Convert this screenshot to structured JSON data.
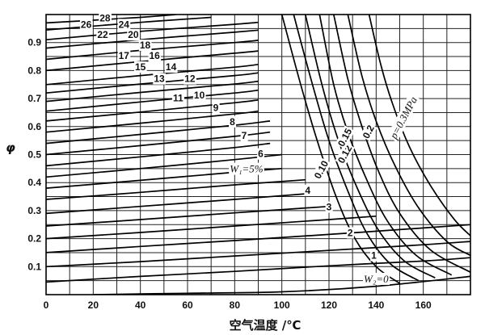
{
  "chart_data": {
    "type": "line",
    "title": "",
    "xlabel": "空气温度 /℃",
    "ylabel": "φ",
    "xlim": [
      0,
      180
    ],
    "ylim": [
      0,
      1.0
    ],
    "x_ticks": [
      0,
      20,
      40,
      60,
      80,
      100,
      120,
      140,
      160
    ],
    "y_ticks": [
      0.1,
      0.2,
      0.3,
      0.4,
      0.5,
      0.6,
      0.7,
      0.8,
      0.9
    ],
    "grid": true,
    "series": [
      {
        "name": "W₂=0",
        "group": "moisture",
        "points": [
          [
            20,
            0.0
          ],
          [
            60,
            0.005
          ],
          [
            100,
            0.01
          ],
          [
            140,
            0.03
          ],
          [
            180,
            0.065
          ]
        ]
      },
      {
        "name": "1",
        "group": "moisture",
        "points": [
          [
            0,
            0.045
          ],
          [
            40,
            0.065
          ],
          [
            80,
            0.083
          ],
          [
            120,
            0.103
          ],
          [
            160,
            0.12
          ],
          [
            180,
            0.132
          ]
        ]
      },
      {
        "name": "2",
        "group": "moisture",
        "points": [
          [
            0,
            0.1
          ],
          [
            40,
            0.118
          ],
          [
            80,
            0.138
          ],
          [
            120,
            0.158
          ],
          [
            160,
            0.178
          ],
          [
            180,
            0.19
          ]
        ]
      },
      {
        "name": "3",
        "group": "moisture",
        "points": [
          [
            0,
            0.15
          ],
          [
            40,
            0.172
          ],
          [
            80,
            0.193
          ],
          [
            120,
            0.215
          ],
          [
            160,
            0.238
          ],
          [
            180,
            0.25
          ]
        ]
      },
      {
        "name": "4",
        "group": "moisture",
        "points": [
          [
            0,
            0.2
          ],
          [
            40,
            0.222
          ],
          [
            80,
            0.245
          ],
          [
            120,
            0.268
          ],
          [
            140,
            0.28
          ]
        ]
      },
      {
        "name": "W₁=5%",
        "group": "moisture",
        "points": [
          [
            0,
            0.245
          ],
          [
            40,
            0.268
          ],
          [
            80,
            0.292
          ],
          [
            120,
            0.315
          ]
        ]
      },
      {
        "name": "6",
        "group": "moisture",
        "points": [
          [
            0,
            0.29
          ],
          [
            40,
            0.315
          ],
          [
            80,
            0.34
          ],
          [
            110,
            0.36
          ]
        ]
      },
      {
        "name": "7",
        "group": "moisture",
        "points": [
          [
            0,
            0.34
          ],
          [
            40,
            0.365
          ],
          [
            80,
            0.392
          ],
          [
            110,
            0.41
          ]
        ]
      },
      {
        "name": "8",
        "group": "moisture",
        "points": [
          [
            0,
            0.38
          ],
          [
            40,
            0.408
          ],
          [
            80,
            0.437
          ],
          [
            100,
            0.45
          ]
        ]
      },
      {
        "name": "9",
        "group": "moisture",
        "points": [
          [
            0,
            0.42
          ],
          [
            40,
            0.45
          ],
          [
            80,
            0.482
          ],
          [
            100,
            0.5
          ]
        ]
      },
      {
        "name": "10",
        "group": "moisture",
        "points": [
          [
            0,
            0.46
          ],
          [
            40,
            0.492
          ],
          [
            80,
            0.525
          ],
          [
            95,
            0.54
          ]
        ]
      },
      {
        "name": "11",
        "group": "moisture",
        "points": [
          [
            0,
            0.5
          ],
          [
            40,
            0.532
          ],
          [
            80,
            0.565
          ],
          [
            95,
            0.58
          ]
        ]
      },
      {
        "name": "12",
        "group": "moisture",
        "points": [
          [
            0,
            0.54
          ],
          [
            40,
            0.572
          ],
          [
            80,
            0.605
          ],
          [
            95,
            0.62
          ]
        ]
      },
      {
        "name": "13",
        "group": "moisture",
        "points": [
          [
            0,
            0.58
          ],
          [
            40,
            0.612
          ],
          [
            80,
            0.645
          ],
          [
            90,
            0.655
          ]
        ]
      },
      {
        "name": "14",
        "group": "moisture",
        "points": [
          [
            0,
            0.62
          ],
          [
            40,
            0.652
          ],
          [
            80,
            0.685
          ],
          [
            90,
            0.695
          ]
        ]
      },
      {
        "name": "15",
        "group": "moisture",
        "points": [
          [
            0,
            0.655
          ],
          [
            40,
            0.688
          ],
          [
            80,
            0.72
          ],
          [
            90,
            0.73
          ]
        ]
      },
      {
        "name": "16",
        "group": "moisture",
        "points": [
          [
            0,
            0.69
          ],
          [
            40,
            0.722
          ],
          [
            80,
            0.752
          ],
          [
            90,
            0.762
          ]
        ]
      },
      {
        "name": "17",
        "group": "moisture",
        "points": [
          [
            0,
            0.72
          ],
          [
            40,
            0.752
          ],
          [
            80,
            0.782
          ],
          [
            90,
            0.792
          ]
        ]
      },
      {
        "name": "18",
        "group": "moisture",
        "points": [
          [
            0,
            0.75
          ],
          [
            40,
            0.782
          ],
          [
            80,
            0.812
          ],
          [
            90,
            0.822
          ]
        ]
      },
      {
        "name": "20",
        "group": "moisture",
        "points": [
          [
            0,
            0.8
          ],
          [
            40,
            0.832
          ],
          [
            80,
            0.862
          ],
          [
            90,
            0.87
          ]
        ]
      },
      {
        "name": "22",
        "group": "moisture",
        "points": [
          [
            0,
            0.84
          ],
          [
            40,
            0.872
          ],
          [
            80,
            0.9
          ],
          [
            90,
            0.908
          ]
        ]
      },
      {
        "name": "24",
        "group": "moisture",
        "points": [
          [
            0,
            0.88
          ],
          [
            40,
            0.91
          ],
          [
            80,
            0.937
          ],
          [
            90,
            0.944
          ]
        ]
      },
      {
        "name": "26",
        "group": "moisture",
        "points": [
          [
            0,
            0.91
          ],
          [
            40,
            0.94
          ],
          [
            80,
            0.965
          ],
          [
            90,
            0.972
          ]
        ]
      },
      {
        "name": "28",
        "group": "moisture",
        "points": [
          [
            0,
            0.945
          ],
          [
            40,
            0.972
          ],
          [
            70,
            0.99
          ]
        ]
      },
      {
        "name": "",
        "group": "moisture",
        "points": [
          [
            0,
            0.97
          ],
          [
            40,
            0.99
          ],
          [
            55,
            1.0
          ]
        ]
      },
      {
        "name": "",
        "group": "pressure",
        "points": [
          [
            100,
            1.0
          ],
          [
            108,
            0.75
          ],
          [
            115,
            0.55
          ],
          [
            123,
            0.35
          ],
          [
            131,
            0.2
          ],
          [
            140,
            0.1
          ],
          [
            150,
            0.04
          ]
        ]
      },
      {
        "name": "",
        "group": "pressure",
        "points": [
          [
            105,
            1.0
          ],
          [
            113,
            0.75
          ],
          [
            120,
            0.55
          ],
          [
            128,
            0.37
          ],
          [
            136,
            0.22
          ],
          [
            146,
            0.11
          ],
          [
            158,
            0.05
          ]
        ]
      },
      {
        "name": "0.10",
        "group": "pressure",
        "points": [
          [
            110,
            1.0
          ],
          [
            117,
            0.75
          ],
          [
            124,
            0.55
          ],
          [
            132,
            0.38
          ],
          [
            141,
            0.23
          ],
          [
            152,
            0.12
          ],
          [
            165,
            0.06
          ]
        ]
      },
      {
        "name": "0.12",
        "group": "pressure",
        "points": [
          [
            116,
            1.0
          ],
          [
            122,
            0.75
          ],
          [
            128,
            0.58
          ],
          [
            136,
            0.41
          ],
          [
            145,
            0.26
          ],
          [
            157,
            0.14
          ],
          [
            172,
            0.07
          ]
        ]
      },
      {
        "name": "0.15",
        "group": "pressure",
        "points": [
          [
            122,
            1.0
          ],
          [
            128,
            0.77
          ],
          [
            134,
            0.6
          ],
          [
            141,
            0.44
          ],
          [
            150,
            0.29
          ],
          [
            163,
            0.16
          ],
          [
            180,
            0.08
          ]
        ]
      },
      {
        "name": "0.2",
        "group": "pressure",
        "points": [
          [
            128,
            1.0
          ],
          [
            134,
            0.78
          ],
          [
            140,
            0.62
          ],
          [
            148,
            0.46
          ],
          [
            158,
            0.31
          ],
          [
            170,
            0.19
          ],
          [
            180,
            0.14
          ]
        ]
      },
      {
        "name": "p=0.3MPa",
        "group": "pressure",
        "points": [
          [
            137,
            1.0
          ],
          [
            142,
            0.82
          ],
          [
            147,
            0.68
          ],
          [
            154,
            0.53
          ],
          [
            163,
            0.39
          ],
          [
            173,
            0.27
          ],
          [
            180,
            0.21
          ]
        ]
      }
    ],
    "labels": [
      {
        "text": "28",
        "x": 25,
        "y": 0.985,
        "style": "plain"
      },
      {
        "text": "26",
        "x": 17,
        "y": 0.962,
        "style": "plain"
      },
      {
        "text": "24",
        "x": 33,
        "y": 0.962,
        "style": "plain"
      },
      {
        "text": "22",
        "x": 24,
        "y": 0.925,
        "style": "plain"
      },
      {
        "text": "20",
        "x": 37,
        "y": 0.925,
        "style": "plain"
      },
      {
        "text": "18",
        "x": 42,
        "y": 0.888,
        "style": "plain"
      },
      {
        "text": "17",
        "x": 33,
        "y": 0.85,
        "style": "plain"
      },
      {
        "text": "16",
        "x": 46,
        "y": 0.85,
        "style": "plain"
      },
      {
        "text": "15",
        "x": 40,
        "y": 0.81,
        "style": "plain"
      },
      {
        "text": "14",
        "x": 53,
        "y": 0.81,
        "style": "plain"
      },
      {
        "text": "13",
        "x": 48,
        "y": 0.768,
        "style": "plain"
      },
      {
        "text": "12",
        "x": 61,
        "y": 0.768,
        "style": "plain"
      },
      {
        "text": "11",
        "x": 56,
        "y": 0.7,
        "style": "plain"
      },
      {
        "text": "10",
        "x": 65,
        "y": 0.71,
        "style": "plain"
      },
      {
        "text": "9",
        "x": 72,
        "y": 0.665,
        "style": "plain"
      },
      {
        "text": "8",
        "x": 79,
        "y": 0.615,
        "style": "plain"
      },
      {
        "text": "7",
        "x": 84,
        "y": 0.565,
        "style": "plain"
      },
      {
        "text": "6",
        "x": 91,
        "y": 0.5,
        "style": "plain"
      },
      {
        "text": "W₁=5%",
        "x": 85,
        "y": 0.445,
        "style": "italic"
      },
      {
        "text": "4",
        "x": 111,
        "y": 0.37,
        "style": "plain"
      },
      {
        "text": "3",
        "x": 120,
        "y": 0.31,
        "style": "plain"
      },
      {
        "text": "2",
        "x": 129,
        "y": 0.218,
        "style": "plain"
      },
      {
        "text": "1",
        "x": 139,
        "y": 0.137,
        "style": "plain"
      },
      {
        "text": "W₂=0",
        "x": 140,
        "y": 0.052,
        "style": "italic"
      },
      {
        "text": "0.10",
        "x": 117,
        "y": 0.445,
        "style": "plain",
        "rotate": -62
      },
      {
        "text": "0.12",
        "x": 127,
        "y": 0.5,
        "style": "plain",
        "rotate": -62
      },
      {
        "text": "0.15",
        "x": 127,
        "y": 0.56,
        "style": "plain",
        "rotate": -62
      },
      {
        "text": "0.2",
        "x": 137,
        "y": 0.58,
        "style": "plain",
        "rotate": -62
      },
      {
        "text": "p=0.3MPa",
        "x": 152,
        "y": 0.63,
        "style": "italic",
        "rotate": -62
      }
    ]
  }
}
